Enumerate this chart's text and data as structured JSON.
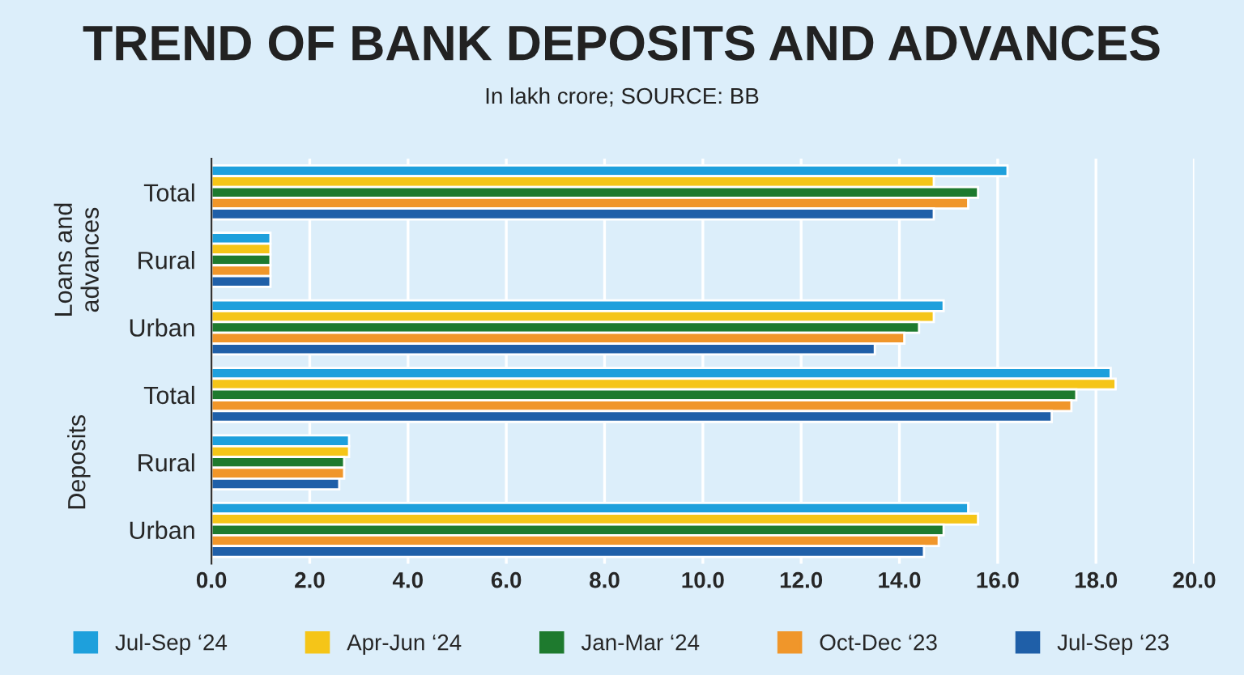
{
  "chart_data": {
    "type": "bar",
    "orientation": "horizontal",
    "title": "TREND OF BANK DEPOSITS AND ADVANCES",
    "subtitle": "In lakh crore; SOURCE: BB",
    "categories": [
      "Total",
      "Rural",
      "Urban",
      "Total",
      "Rural",
      "Urban"
    ],
    "series": [
      {
        "name": "Jul-Sep ‘24",
        "color": "#1ea0dc",
        "values": [
          16.2,
          1.2,
          14.9,
          18.3,
          2.8,
          15.4
        ]
      },
      {
        "name": "Apr-Jun ‘24",
        "color": "#f5c518",
        "values": [
          14.7,
          1.2,
          14.7,
          18.4,
          2.8,
          15.6
        ]
      },
      {
        "name": "Jan-Mar ‘24",
        "color": "#1e7a2e",
        "values": [
          15.6,
          1.2,
          14.4,
          17.6,
          2.7,
          14.9
        ]
      },
      {
        "name": "Oct-Dec ‘23",
        "color": "#f0962a",
        "values": [
          15.4,
          1.2,
          14.1,
          17.5,
          2.7,
          14.8
        ]
      },
      {
        "name": "Jul-Sep ‘23",
        "color": "#1f5fa8",
        "values": [
          14.7,
          1.2,
          13.5,
          17.1,
          2.6,
          14.5
        ]
      }
    ],
    "annotations": [
      "Loans and\nadvances",
      "Deposits"
    ],
    "xlim": [
      0,
      20
    ],
    "xticks": [
      {
        "value": 0,
        "label": "0.0"
      },
      {
        "value": 2,
        "label": "2.0"
      },
      {
        "value": 4,
        "label": "4.0"
      },
      {
        "value": 6,
        "label": "6.0"
      },
      {
        "value": 8,
        "label": "8.0"
      },
      {
        "value": 10,
        "label": "10.0"
      },
      {
        "value": 12,
        "label": "12.0"
      },
      {
        "value": 14,
        "label": "14.0"
      },
      {
        "value": 16,
        "label": "16.0"
      },
      {
        "value": 18,
        "label": "18.0"
      },
      {
        "value": 20,
        "label": "20.0"
      }
    ],
    "grid": "x",
    "legend": "bottom"
  }
}
